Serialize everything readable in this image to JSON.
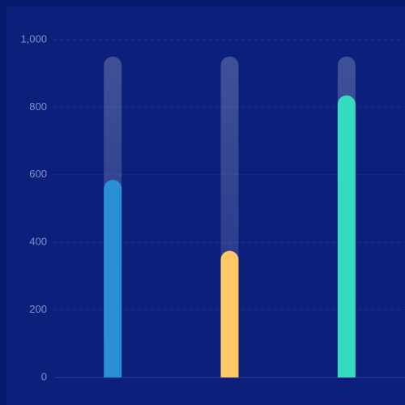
{
  "chart_data": {
    "type": "bar",
    "categories": [
      null,
      null,
      null
    ],
    "values": [
      585,
      375,
      835
    ],
    "colors": [
      "#2a8fd6",
      "#ffc766",
      "#35dcc0"
    ],
    "track_values": [
      950,
      950,
      950
    ],
    "ylim": [
      0,
      1000
    ],
    "yticks": [
      0,
      200,
      400,
      600,
      800,
      {
        "value": 1000,
        "label": "1,000"
      }
    ],
    "grid": true
  }
}
